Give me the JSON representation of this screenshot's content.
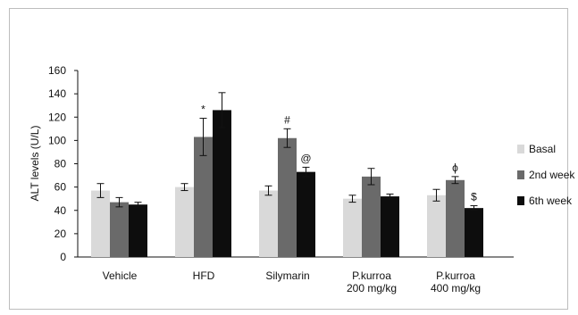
{
  "chart_data": {
    "type": "bar",
    "title": "",
    "xlabel": "",
    "ylabel": "ALT levels (U/L)",
    "ylim": [
      0,
      160
    ],
    "yticks": [
      0,
      20,
      40,
      60,
      80,
      100,
      120,
      140,
      160
    ],
    "grid": false,
    "legend_position": "right",
    "categories": [
      [
        "Vehicle"
      ],
      [
        "HFD"
      ],
      [
        "Silymarin"
      ],
      [
        "P.kurroa",
        "200 mg/kg"
      ],
      [
        "P.kurroa",
        "400 mg/kg"
      ]
    ],
    "series": [
      {
        "name": "Basal",
        "color": "#d9d9d9",
        "values": [
          57,
          60,
          57,
          50,
          53
        ],
        "errors": [
          6,
          3,
          4,
          3,
          5
        ]
      },
      {
        "name": "2nd week",
        "color": "#6a6a6a",
        "values": [
          47,
          103,
          102,
          69,
          66
        ],
        "errors": [
          4,
          16,
          8,
          7,
          3
        ]
      },
      {
        "name": "6th week",
        "color": "#0d0d0d",
        "values": [
          45,
          126,
          73,
          52,
          42
        ],
        "errors": [
          2,
          15,
          4,
          2,
          2
        ]
      }
    ],
    "annotations": [
      {
        "text": "*",
        "category": 1,
        "series": 1
      },
      {
        "text": "#",
        "category": 2,
        "series": 1
      },
      {
        "text": "@",
        "category": 2,
        "series": 2
      },
      {
        "text": "ϕ",
        "category": 4,
        "series": 1
      },
      {
        "text": "$",
        "category": 4,
        "series": 2
      }
    ]
  }
}
